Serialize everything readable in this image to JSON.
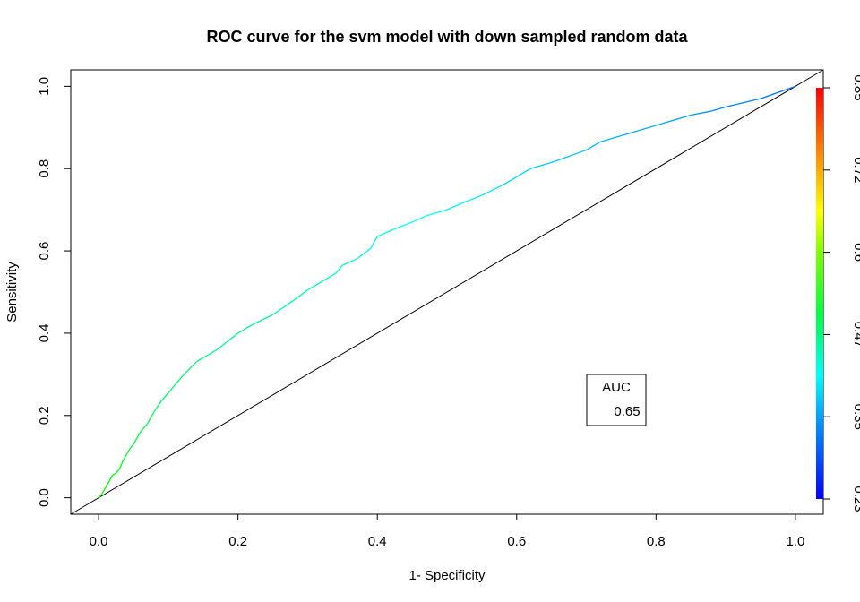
{
  "chart_data": {
    "type": "line",
    "title": "ROC curve for the svm model with down sampled random data",
    "xlabel": "1- Specificity",
    "ylabel": "Sensitivity",
    "xlim": [
      -0.04,
      1.04
    ],
    "ylim": [
      -0.04,
      1.04
    ],
    "x_ticks": [
      "0.0",
      "0.2",
      "0.4",
      "0.6",
      "0.8",
      "1.0"
    ],
    "y_ticks": [
      "0.0",
      "0.2",
      "0.4",
      "0.6",
      "0.8",
      "1.0"
    ],
    "grid": false,
    "diagonal_reference": true,
    "colorbar": {
      "ticks": [
        "0.23",
        "0.35",
        "0.47",
        "0.6",
        "0.72",
        "0.85"
      ],
      "range": [
        0.23,
        0.85
      ]
    },
    "legend": {
      "title": "AUC",
      "value": "0.65",
      "placement": "bottom-right"
    },
    "series": [
      {
        "x": [
          0,
          0.005,
          0.01,
          0.015,
          0.02,
          0.025,
          0.03,
          0.035,
          0.04,
          0.045,
          0.05,
          0.06,
          0.07,
          0.08,
          0.09,
          0.1,
          0.12,
          0.14,
          0.15,
          0.17,
          0.2,
          0.22,
          0.25,
          0.28,
          0.3,
          0.32,
          0.34,
          0.35,
          0.37,
          0.39,
          0.4,
          0.42,
          0.45,
          0.47,
          0.5,
          0.52,
          0.55,
          0.58,
          0.6,
          0.62,
          0.65,
          0.7,
          0.72,
          0.75,
          0.8,
          0.82,
          0.85,
          0.88,
          0.9,
          0.95,
          1.0
        ],
        "y": [
          0,
          0.01,
          0.025,
          0.04,
          0.055,
          0.06,
          0.07,
          0.09,
          0.105,
          0.12,
          0.13,
          0.16,
          0.18,
          0.21,
          0.235,
          0.255,
          0.295,
          0.33,
          0.34,
          0.36,
          0.4,
          0.42,
          0.445,
          0.48,
          0.505,
          0.525,
          0.545,
          0.565,
          0.58,
          0.605,
          0.635,
          0.65,
          0.67,
          0.685,
          0.7,
          0.715,
          0.735,
          0.76,
          0.78,
          0.8,
          0.815,
          0.845,
          0.865,
          0.88,
          0.905,
          0.915,
          0.93,
          0.94,
          0.95,
          0.97,
          1.0
        ],
        "cutoff": [
          0.55,
          0.545,
          0.54,
          0.535,
          0.53,
          0.525,
          0.52,
          0.515,
          0.51,
          0.505,
          0.5,
          0.495,
          0.49,
          0.485,
          0.48,
          0.475,
          0.47,
          0.465,
          0.46,
          0.455,
          0.45,
          0.445,
          0.44,
          0.435,
          0.43,
          0.425,
          0.42,
          0.415,
          0.41,
          0.405,
          0.4,
          0.395,
          0.39,
          0.385,
          0.38,
          0.375,
          0.37,
          0.365,
          0.36,
          0.355,
          0.35,
          0.345,
          0.34,
          0.335,
          0.33,
          0.325,
          0.32,
          0.315,
          0.31,
          0.3,
          0.29
        ]
      }
    ]
  }
}
